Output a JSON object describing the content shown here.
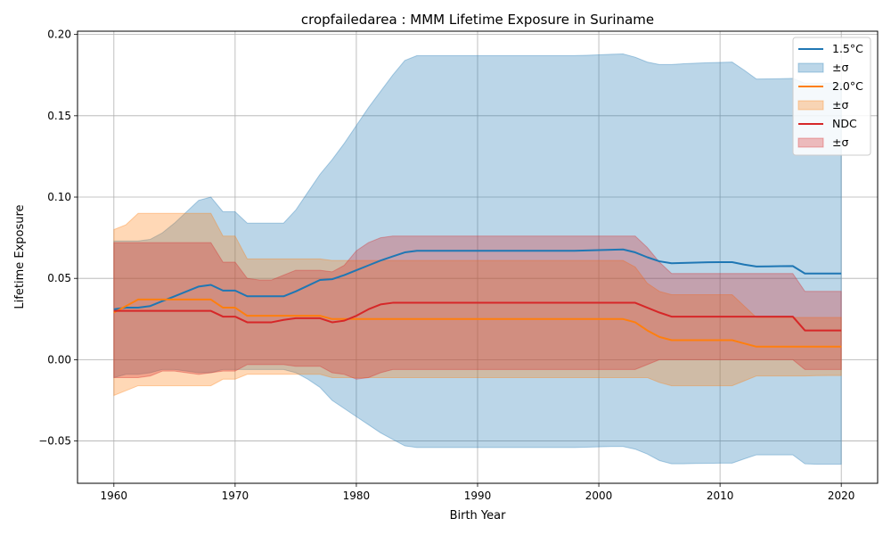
{
  "chart_data": {
    "type": "line",
    "title": "cropfailedarea : MMM Lifetime Exposure in Suriname",
    "xlabel": "Birth Year",
    "ylabel": "Lifetime Exposure",
    "xlim": [
      1957,
      2023
    ],
    "ylim": [
      -0.076,
      0.202
    ],
    "xticks": [
      1960,
      1970,
      1980,
      1990,
      2000,
      2010,
      2020
    ],
    "xtick_labels": [
      "1960",
      "1970",
      "1980",
      "1990",
      "2000",
      "2010",
      "2020"
    ],
    "yticks": [
      -0.05,
      0.0,
      0.05,
      0.1,
      0.15,
      0.2
    ],
    "ytick_labels": [
      "−0.05",
      "0.00",
      "0.05",
      "0.10",
      "0.15",
      "0.20"
    ],
    "grid": true,
    "legend_position": "top-right",
    "x": [
      1960,
      1961,
      1962,
      1963,
      1964,
      1965,
      1966,
      1967,
      1968,
      1969,
      1970,
      1971,
      1972,
      1973,
      1974,
      1975,
      1976,
      1977,
      1978,
      1979,
      1980,
      1981,
      1982,
      1983,
      1984,
      1985,
      1986,
      1987,
      1988,
      1989,
      1990,
      1991,
      1992,
      1993,
      1994,
      1995,
      1996,
      1997,
      1998,
      1999,
      2000,
      2001,
      2002,
      2003,
      2004,
      2005,
      2006,
      2007,
      2008,
      2009,
      2010,
      2011,
      2012,
      2013,
      2014,
      2015,
      2016,
      2017,
      2018,
      2019,
      2020
    ],
    "series": [
      {
        "name": "1.5°C",
        "band_label": "±σ",
        "color": "#1f77b4",
        "band_color": "#1f77b4",
        "values": [
          0.031,
          0.032,
          0.032,
          0.033,
          0.036,
          0.039,
          0.042,
          0.045,
          0.046,
          0.0425,
          0.0425,
          0.039,
          0.039,
          0.039,
          0.039,
          0.042,
          0.0455,
          0.049,
          0.0495,
          0.052,
          0.055,
          0.058,
          0.061,
          0.0635,
          0.066,
          0.067,
          0.067,
          0.067,
          0.067,
          0.067,
          0.067,
          0.067,
          0.067,
          0.067,
          0.067,
          0.067,
          0.067,
          0.067,
          0.067,
          0.0672,
          0.0674,
          0.0676,
          0.0678,
          0.066,
          0.063,
          0.0605,
          0.0593,
          0.0595,
          0.0597,
          0.0599,
          0.06,
          0.06,
          0.0585,
          0.0573,
          0.0574,
          0.0575,
          0.0576,
          0.053,
          0.053,
          0.053,
          0.053
        ],
        "upper": [
          0.073,
          0.073,
          0.073,
          0.074,
          0.078,
          0.084,
          0.091,
          0.098,
          0.1,
          0.091,
          0.091,
          0.084,
          0.084,
          0.084,
          0.084,
          0.092,
          0.103,
          0.114,
          0.123,
          0.133,
          0.144,
          0.155,
          0.165,
          0.175,
          0.184,
          0.187,
          0.187,
          0.187,
          0.187,
          0.187,
          0.187,
          0.187,
          0.187,
          0.187,
          0.187,
          0.187,
          0.187,
          0.187,
          0.187,
          0.1872,
          0.1875,
          0.1878,
          0.188,
          0.186,
          0.183,
          0.1815,
          0.1815,
          0.182,
          0.1823,
          0.1826,
          0.1828,
          0.183,
          0.178,
          0.1726,
          0.1727,
          0.1728,
          0.173,
          0.17,
          0.17,
          0.17,
          0.17
        ],
        "lower": [
          -0.011,
          -0.009,
          -0.009,
          -0.008,
          -0.006,
          -0.006,
          -0.007,
          -0.008,
          -0.008,
          -0.006,
          -0.006,
          -0.006,
          -0.006,
          -0.006,
          -0.006,
          -0.008,
          -0.012,
          -0.017,
          -0.025,
          -0.03,
          -0.035,
          -0.04,
          -0.045,
          -0.049,
          -0.053,
          -0.054,
          -0.054,
          -0.054,
          -0.054,
          -0.054,
          -0.054,
          -0.054,
          -0.054,
          -0.054,
          -0.054,
          -0.054,
          -0.054,
          -0.054,
          -0.054,
          -0.0538,
          -0.0536,
          -0.0534,
          -0.0534,
          -0.055,
          -0.058,
          -0.062,
          -0.064,
          -0.064,
          -0.0638,
          -0.0637,
          -0.0636,
          -0.0636,
          -0.061,
          -0.0585,
          -0.0585,
          -0.0585,
          -0.0585,
          -0.064,
          -0.0643,
          -0.0643,
          -0.0643
        ]
      },
      {
        "name": "2.0°C",
        "band_label": "±σ",
        "color": "#ff7f0e",
        "band_color": "#ff7f0e",
        "values": [
          0.029,
          0.033,
          0.037,
          0.037,
          0.037,
          0.037,
          0.037,
          0.037,
          0.037,
          0.032,
          0.032,
          0.027,
          0.027,
          0.027,
          0.027,
          0.027,
          0.027,
          0.027,
          0.025,
          0.025,
          0.025,
          0.025,
          0.025,
          0.025,
          0.025,
          0.025,
          0.025,
          0.025,
          0.025,
          0.025,
          0.025,
          0.025,
          0.025,
          0.025,
          0.025,
          0.025,
          0.025,
          0.025,
          0.025,
          0.025,
          0.025,
          0.025,
          0.025,
          0.023,
          0.018,
          0.014,
          0.012,
          0.012,
          0.012,
          0.012,
          0.012,
          0.012,
          0.01,
          0.008,
          0.008,
          0.008,
          0.008,
          0.008,
          0.008,
          0.008,
          0.008
        ],
        "upper": [
          0.08,
          0.083,
          0.09,
          0.09,
          0.09,
          0.09,
          0.09,
          0.09,
          0.09,
          0.076,
          0.076,
          0.062,
          0.062,
          0.062,
          0.062,
          0.062,
          0.062,
          0.062,
          0.061,
          0.061,
          0.061,
          0.061,
          0.061,
          0.061,
          0.061,
          0.061,
          0.061,
          0.061,
          0.061,
          0.061,
          0.061,
          0.061,
          0.061,
          0.061,
          0.061,
          0.061,
          0.061,
          0.061,
          0.061,
          0.061,
          0.061,
          0.061,
          0.061,
          0.057,
          0.047,
          0.042,
          0.04,
          0.04,
          0.04,
          0.04,
          0.04,
          0.04,
          0.033,
          0.026,
          0.026,
          0.026,
          0.026,
          0.026,
          0.026,
          0.026,
          0.026
        ],
        "lower": [
          -0.022,
          -0.019,
          -0.016,
          -0.016,
          -0.016,
          -0.016,
          -0.016,
          -0.016,
          -0.016,
          -0.012,
          -0.012,
          -0.009,
          -0.009,
          -0.009,
          -0.009,
          -0.009,
          -0.009,
          -0.009,
          -0.011,
          -0.011,
          -0.011,
          -0.011,
          -0.011,
          -0.011,
          -0.011,
          -0.011,
          -0.011,
          -0.011,
          -0.011,
          -0.011,
          -0.011,
          -0.011,
          -0.011,
          -0.011,
          -0.011,
          -0.011,
          -0.011,
          -0.011,
          -0.011,
          -0.011,
          -0.011,
          -0.011,
          -0.011,
          -0.011,
          -0.011,
          -0.014,
          -0.016,
          -0.016,
          -0.016,
          -0.016,
          -0.016,
          -0.016,
          -0.013,
          -0.01,
          -0.01,
          -0.01,
          -0.01,
          -0.01,
          -0.0098,
          -0.0097,
          -0.0097
        ]
      },
      {
        "name": "NDC",
        "band_label": "±σ",
        "color": "#d62728",
        "band_color": "#d62728",
        "values": [
          0.03,
          0.03,
          0.03,
          0.03,
          0.03,
          0.03,
          0.03,
          0.03,
          0.03,
          0.0265,
          0.0265,
          0.023,
          0.023,
          0.023,
          0.0245,
          0.0255,
          0.0255,
          0.0255,
          0.023,
          0.024,
          0.027,
          0.031,
          0.034,
          0.035,
          0.035,
          0.035,
          0.035,
          0.035,
          0.035,
          0.035,
          0.035,
          0.035,
          0.035,
          0.035,
          0.035,
          0.035,
          0.035,
          0.035,
          0.035,
          0.035,
          0.035,
          0.035,
          0.035,
          0.035,
          0.032,
          0.029,
          0.0265,
          0.0265,
          0.0265,
          0.0265,
          0.0265,
          0.0265,
          0.0265,
          0.0265,
          0.0265,
          0.0265,
          0.0265,
          0.018,
          0.018,
          0.018,
          0.018
        ],
        "upper": [
          0.072,
          0.072,
          0.072,
          0.072,
          0.072,
          0.072,
          0.072,
          0.072,
          0.072,
          0.06,
          0.06,
          0.05,
          0.049,
          0.049,
          0.052,
          0.055,
          0.055,
          0.055,
          0.054,
          0.058,
          0.067,
          0.072,
          0.075,
          0.076,
          0.076,
          0.076,
          0.076,
          0.076,
          0.076,
          0.076,
          0.076,
          0.076,
          0.076,
          0.076,
          0.076,
          0.076,
          0.076,
          0.076,
          0.076,
          0.076,
          0.076,
          0.076,
          0.076,
          0.076,
          0.069,
          0.06,
          0.053,
          0.053,
          0.053,
          0.053,
          0.053,
          0.053,
          0.053,
          0.053,
          0.053,
          0.053,
          0.053,
          0.042,
          0.042,
          0.042,
          0.042
        ],
        "lower": [
          -0.011,
          -0.011,
          -0.011,
          -0.01,
          -0.007,
          -0.007,
          -0.008,
          -0.009,
          -0.008,
          -0.007,
          -0.007,
          -0.003,
          -0.003,
          -0.003,
          -0.003,
          -0.004,
          -0.004,
          -0.004,
          -0.008,
          -0.009,
          -0.012,
          -0.011,
          -0.008,
          -0.006,
          -0.006,
          -0.006,
          -0.006,
          -0.006,
          -0.006,
          -0.006,
          -0.006,
          -0.006,
          -0.006,
          -0.006,
          -0.006,
          -0.006,
          -0.006,
          -0.006,
          -0.006,
          -0.006,
          -0.006,
          -0.006,
          -0.006,
          -0.006,
          -0.003,
          0.0,
          0.0,
          0.0,
          0.0,
          0.0,
          0.0,
          0.0,
          0.0,
          0.0,
          0.0,
          0.0,
          0.0,
          -0.006,
          -0.006,
          -0.006,
          -0.006
        ]
      }
    ]
  }
}
